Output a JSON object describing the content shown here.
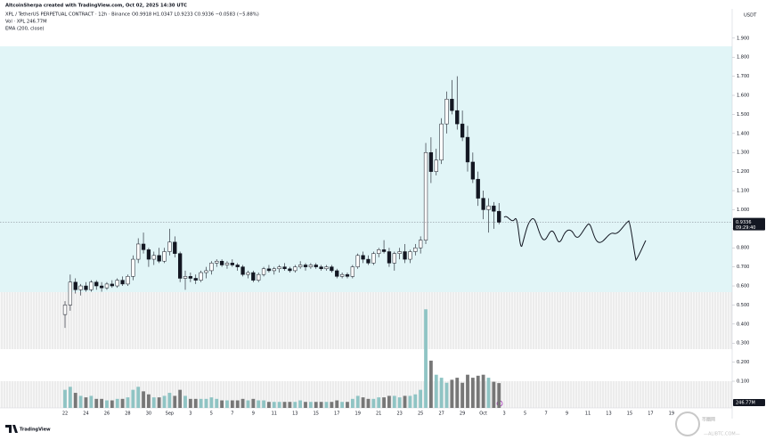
{
  "chart_data": {
    "type": "candlestick",
    "author_line": "AltcoinSherpa created with TradingView.com, Oct 02, 2025 14:30 UTC",
    "symbol": "XPL / TetherUS PERPETUAL CONTRACT · 12h · Binance",
    "ohlc": "O0.9918 H1.0347 L0.9233 C0.9336 −0.0583 (−5.88%)",
    "volume_legend": "Vol · XPL 246.77M",
    "indicator": "EMA (200, close)",
    "currency": "USDT",
    "countdown": "09:29:40",
    "last_volume_label": "246.77M",
    "brand": "TradingView",
    "watermark": "币圈网",
    "watermark_url": "—ALIBTC.COM—",
    "up_color": "#ffffff",
    "down_color": "#131722",
    "volume_up_color": "#8fc4c4",
    "volume_down_color": "#777777",
    "categories": [
      "22",
      null,
      null,
      null,
      "24",
      null,
      null,
      null,
      "26",
      null,
      null,
      null,
      "28",
      null,
      null,
      null,
      "30",
      null,
      null,
      null,
      "Sep",
      null,
      null,
      null,
      "3",
      null,
      null,
      null,
      "5",
      null,
      null,
      null,
      "7",
      null,
      null,
      null,
      "9",
      null,
      null,
      null,
      "11",
      null,
      null,
      null,
      "13",
      null,
      null,
      null,
      "15",
      null,
      null,
      null,
      "17",
      null,
      null,
      null,
      "19",
      null,
      null,
      null,
      "21",
      null,
      null,
      null,
      "23",
      null,
      null,
      null,
      "25",
      null,
      null,
      null,
      "27",
      null,
      null,
      null,
      "29",
      null,
      null,
      null,
      "Oct",
      null,
      null,
      null,
      "3",
      null,
      null,
      null,
      "5",
      null,
      null,
      null,
      "7",
      null,
      null,
      null,
      "9",
      null,
      null,
      null,
      "11",
      null,
      null,
      null,
      "13",
      null,
      null,
      null,
      "15",
      null,
      null,
      null,
      "17",
      null,
      null,
      null,
      "19"
    ],
    "open": [
      0.45,
      0.5,
      0.62,
      0.58,
      0.6,
      0.58,
      0.62,
      0.6,
      0.59,
      0.61,
      0.6,
      0.63,
      0.61,
      0.65,
      0.74,
      0.82,
      0.79,
      0.74,
      0.76,
      0.73,
      0.78,
      0.83,
      0.77,
      0.64,
      0.65,
      0.64,
      0.63,
      0.67,
      0.68,
      0.72,
      0.73,
      0.71,
      0.72,
      0.71,
      0.7,
      0.66,
      0.67,
      0.63,
      0.66,
      0.69,
      0.68,
      0.69,
      0.7,
      0.69,
      0.68,
      0.7,
      0.71,
      0.7,
      0.71,
      0.7,
      0.69,
      0.7,
      0.68,
      0.65,
      0.66,
      0.65,
      0.7,
      0.76,
      0.74,
      0.72,
      0.77,
      0.79,
      0.78,
      0.72,
      0.77,
      0.78,
      0.74,
      0.78,
      0.8,
      0.84,
      1.3,
      1.2,
      1.26,
      1.45,
      1.58,
      1.52,
      1.45,
      1.38,
      1.25,
      1.16,
      1.06,
      1.0,
      1.02,
      0.9918,
      null,
      null,
      null,
      null,
      null,
      null,
      null,
      null,
      null,
      null,
      null,
      null,
      null,
      null,
      null,
      null,
      null,
      null,
      null,
      null,
      null,
      null,
      null,
      null,
      null,
      null,
      null,
      null,
      null,
      null,
      null,
      null,
      null
    ],
    "high": [
      0.52,
      0.66,
      0.64,
      0.61,
      0.62,
      0.63,
      0.63,
      0.62,
      0.62,
      0.63,
      0.64,
      0.65,
      0.66,
      0.76,
      0.85,
      0.88,
      0.8,
      0.78,
      0.8,
      0.8,
      0.9,
      0.86,
      0.78,
      0.68,
      0.67,
      0.66,
      0.68,
      0.7,
      0.73,
      0.74,
      0.74,
      0.73,
      0.74,
      0.72,
      0.71,
      0.68,
      0.68,
      0.67,
      0.7,
      0.71,
      0.7,
      0.71,
      0.72,
      0.7,
      0.71,
      0.73,
      0.72,
      0.72,
      0.72,
      0.71,
      0.71,
      0.71,
      0.69,
      0.67,
      0.67,
      0.71,
      0.77,
      0.78,
      0.76,
      0.78,
      0.8,
      0.84,
      0.8,
      0.78,
      0.8,
      0.82,
      0.79,
      0.82,
      0.86,
      1.35,
      1.38,
      1.32,
      1.48,
      1.62,
      1.68,
      1.7,
      1.52,
      1.44,
      1.3,
      1.2,
      1.1,
      1.06,
      1.04,
      1.0347,
      null,
      null,
      null,
      null,
      null,
      null,
      null,
      null,
      null,
      null,
      null,
      null,
      null,
      null,
      null,
      null,
      null,
      null,
      null,
      null,
      null,
      null,
      null,
      null,
      null,
      null,
      null,
      null,
      null,
      null,
      null,
      null,
      null
    ],
    "low": [
      0.38,
      0.47,
      0.56,
      0.55,
      0.57,
      0.57,
      0.58,
      0.57,
      0.58,
      0.59,
      0.59,
      0.6,
      0.6,
      0.63,
      0.72,
      0.77,
      0.7,
      0.71,
      0.72,
      0.72,
      0.76,
      0.75,
      0.62,
      0.58,
      0.62,
      0.61,
      0.62,
      0.64,
      0.66,
      0.7,
      0.7,
      0.69,
      0.7,
      0.68,
      0.65,
      0.64,
      0.62,
      0.62,
      0.65,
      0.67,
      0.66,
      0.67,
      0.68,
      0.67,
      0.67,
      0.69,
      0.68,
      0.69,
      0.69,
      0.68,
      0.68,
      0.67,
      0.64,
      0.64,
      0.64,
      0.64,
      0.69,
      0.72,
      0.71,
      0.71,
      0.75,
      0.77,
      0.7,
      0.68,
      0.74,
      0.72,
      0.72,
      0.76,
      0.77,
      0.82,
      1.14,
      1.18,
      1.24,
      1.4,
      1.5,
      1.42,
      1.36,
      1.2,
      1.14,
      1.02,
      0.95,
      0.88,
      0.9,
      0.9233,
      null,
      null,
      null,
      null,
      null,
      null,
      null,
      null,
      null,
      null,
      null,
      null,
      null,
      null,
      null,
      null,
      null,
      null,
      null,
      null,
      null,
      null,
      null,
      null,
      null,
      null,
      null,
      null,
      null,
      null,
      null,
      null,
      null
    ],
    "close": [
      0.5,
      0.62,
      0.58,
      0.6,
      0.58,
      0.62,
      0.6,
      0.59,
      0.61,
      0.6,
      0.63,
      0.61,
      0.65,
      0.74,
      0.82,
      0.79,
      0.74,
      0.76,
      0.73,
      0.78,
      0.83,
      0.77,
      0.64,
      0.65,
      0.64,
      0.63,
      0.67,
      0.68,
      0.72,
      0.73,
      0.71,
      0.72,
      0.71,
      0.7,
      0.66,
      0.67,
      0.63,
      0.66,
      0.69,
      0.68,
      0.69,
      0.7,
      0.69,
      0.68,
      0.7,
      0.71,
      0.7,
      0.71,
      0.7,
      0.69,
      0.7,
      0.68,
      0.65,
      0.66,
      0.65,
      0.7,
      0.76,
      0.74,
      0.72,
      0.77,
      0.79,
      0.78,
      0.72,
      0.77,
      0.78,
      0.74,
      0.78,
      0.8,
      0.84,
      1.3,
      1.2,
      1.26,
      1.45,
      1.58,
      1.52,
      1.45,
      1.38,
      1.25,
      1.16,
      1.06,
      1.0,
      1.02,
      0.9918,
      0.9336,
      null,
      null,
      null,
      null,
      null,
      null,
      null,
      null,
      null,
      null,
      null,
      null,
      null,
      null,
      null,
      null,
      null,
      null,
      null,
      null,
      null,
      null,
      null,
      null,
      null,
      null,
      null,
      null,
      null,
      null,
      null,
      null,
      null
    ],
    "volume": [
      180,
      210,
      150,
      120,
      105,
      120,
      90,
      90,
      75,
      75,
      90,
      90,
      105,
      180,
      210,
      165,
      135,
      105,
      105,
      120,
      150,
      120,
      180,
      120,
      90,
      90,
      90,
      90,
      105,
      90,
      75,
      75,
      75,
      75,
      90,
      75,
      90,
      75,
      75,
      60,
      60,
      60,
      60,
      60,
      60,
      75,
      60,
      60,
      60,
      60,
      60,
      60,
      75,
      60,
      60,
      90,
      120,
      105,
      90,
      90,
      105,
      105,
      120,
      120,
      105,
      120,
      120,
      135,
      180,
      980,
      470,
      330,
      300,
      250,
      280,
      300,
      250,
      330,
      300,
      320,
      330,
      300,
      260,
      246.77,
      null,
      null,
      null,
      null,
      null,
      null,
      null,
      null,
      null,
      null,
      null,
      null,
      null,
      null,
      null,
      null,
      null,
      null,
      null,
      null,
      null,
      null,
      null,
      null,
      null,
      null,
      null,
      null,
      null,
      null,
      null,
      null,
      null
    ],
    "ylim": [
      -0.04,
      2.03
    ],
    "y2lim": [
      0,
      3920
    ],
    "yticks": [
      {
        "value": 0.1,
        "label": "0.100"
      },
      {
        "value": 0.2,
        "label": "0.200"
      },
      {
        "value": 0.3,
        "label": "0.300"
      },
      {
        "value": 0.4,
        "label": "0.400"
      },
      {
        "value": 0.5,
        "label": "0.500"
      },
      {
        "value": 0.6,
        "label": "0.600"
      },
      {
        "value": 0.7,
        "label": "0.700"
      },
      {
        "value": 0.8,
        "label": "0.800"
      },
      {
        "value": 0.9,
        "label": "0.900"
      },
      {
        "value": 1.0,
        "label": "1.000"
      },
      {
        "value": 1.1,
        "label": "1.100"
      },
      {
        "value": 1.2,
        "label": "1.200"
      },
      {
        "value": 1.3,
        "label": "1.300"
      },
      {
        "value": 1.4,
        "label": "1.400"
      },
      {
        "value": 1.5,
        "label": "1.500"
      },
      {
        "value": 1.6,
        "label": "1.600"
      },
      {
        "value": 1.7,
        "label": "1.700"
      },
      {
        "value": 1.8,
        "label": "1.800"
      },
      {
        "value": 1.9,
        "label": "1.900"
      }
    ]
  }
}
